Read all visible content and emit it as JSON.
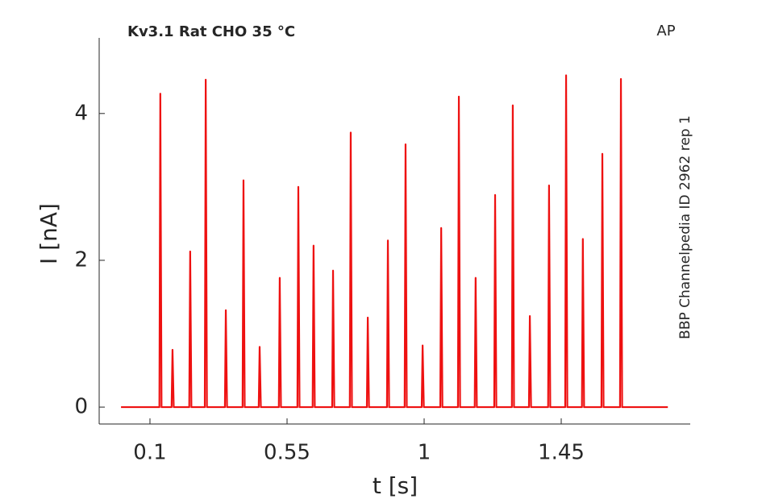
{
  "chart_data": {
    "type": "line",
    "title": "Kv3.1  Rat  CHO  35 °C",
    "annotation": "AP",
    "side_label": "BBP Channelpedia ID 2962 rep 1",
    "xlabel": "t [s]",
    "ylabel": "I [nA]",
    "color": "#ee1111",
    "xlim": [
      -0.0667,
      1.8735
    ],
    "xticks": [
      0.1,
      0.55,
      1,
      1.45
    ],
    "ylim": [
      -0.23,
      5.03
    ],
    "yticks": [
      0,
      2,
      4
    ],
    "grid": false,
    "x": [
      0.005,
      0.131,
      0.134,
      0.138,
      0.171,
      0.174,
      0.178,
      0.229,
      0.232,
      0.236,
      0.28,
      0.283,
      0.287,
      0.346,
      0.349,
      0.353,
      0.404,
      0.407,
      0.411,
      0.457,
      0.46,
      0.464,
      0.523,
      0.526,
      0.53,
      0.584,
      0.587,
      0.591,
      0.634,
      0.637,
      0.641,
      0.698,
      0.701,
      0.705,
      0.756,
      0.759,
      0.763,
      0.812,
      0.815,
      0.819,
      0.878,
      0.881,
      0.885,
      0.936,
      0.939,
      0.943,
      0.992,
      0.995,
      0.999,
      1.053,
      1.056,
      1.06,
      1.111,
      1.114,
      1.118,
      1.166,
      1.169,
      1.173,
      1.23,
      1.233,
      1.237,
      1.288,
      1.291,
      1.295,
      1.344,
      1.347,
      1.351,
      1.407,
      1.41,
      1.414,
      1.463,
      1.466,
      1.47,
      1.518,
      1.521,
      1.525,
      1.582,
      1.585,
      1.589,
      1.643,
      1.646,
      1.65,
      1.8
    ],
    "values": [
      0,
      0,
      4.27,
      0,
      0,
      0.78,
      0,
      0,
      2.12,
      0,
      0,
      4.46,
      0,
      0,
      1.32,
      0,
      0,
      3.09,
      0,
      0,
      0.82,
      0,
      0,
      1.76,
      0,
      0,
      3.0,
      0,
      0,
      2.2,
      0,
      0,
      1.86,
      0,
      0,
      3.74,
      0,
      0,
      1.22,
      0,
      0,
      2.27,
      0,
      0,
      3.58,
      0,
      0,
      0.84,
      0,
      0,
      2.44,
      0,
      0,
      4.23,
      0,
      0,
      1.76,
      0,
      0,
      2.89,
      0,
      0,
      4.11,
      0,
      0,
      1.24,
      0,
      0,
      3.02,
      0,
      0,
      4.52,
      0,
      0,
      2.29,
      0,
      0,
      3.45,
      0,
      0,
      4.47,
      0,
      0
    ]
  }
}
